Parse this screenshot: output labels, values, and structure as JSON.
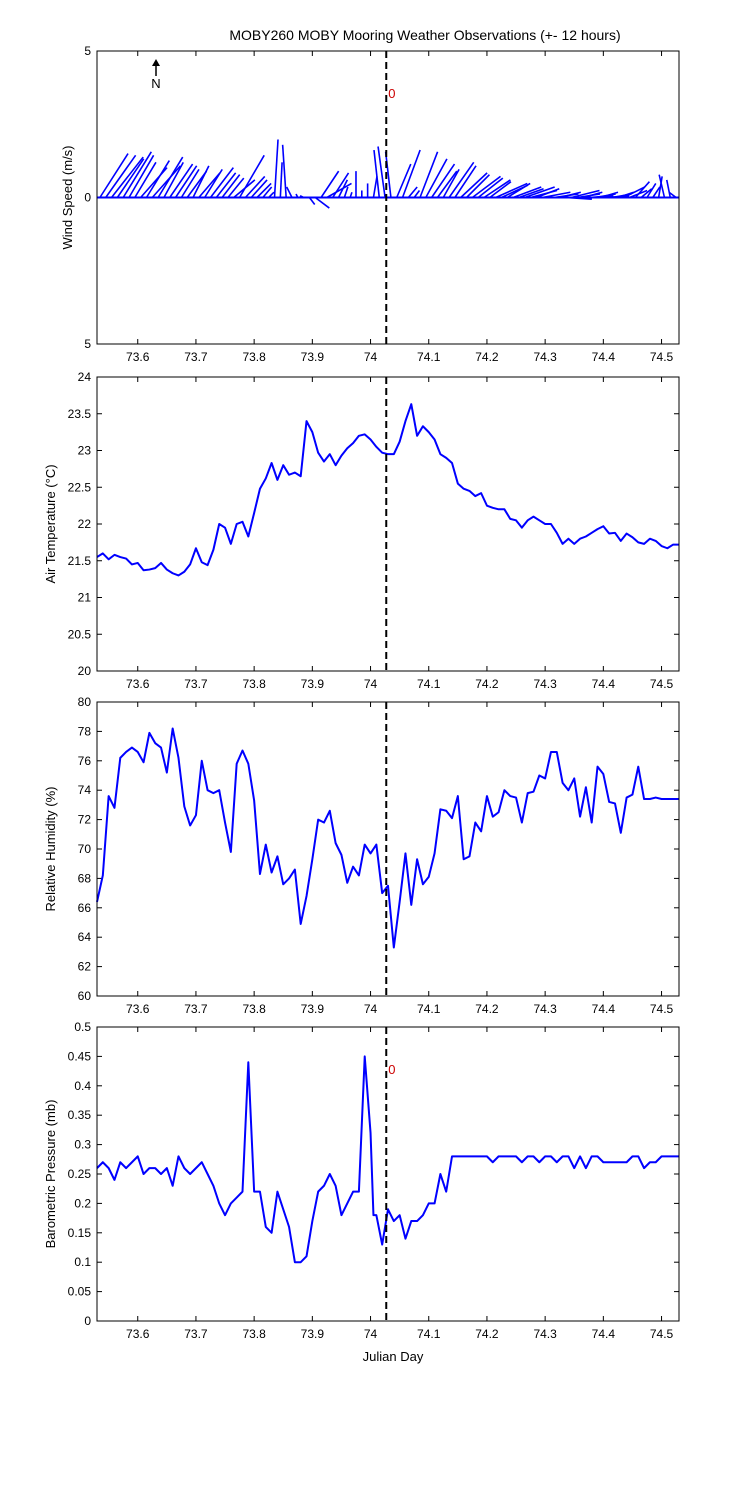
{
  "figure": {
    "title": "MOBY260 MOBY Mooring Weather Observations (+- 12 hours)",
    "xlabel": "Julian Day",
    "event_label": "0",
    "north_label": "N"
  },
  "chart_data": [
    {
      "id": "wind",
      "type": "vector",
      "ylabel": "Wind Speed (m/s)",
      "xlim": [
        73.53,
        74.53
      ],
      "ylim": [
        -5,
        5
      ],
      "ytick_labels": [
        "5",
        "0",
        "5"
      ],
      "xticks": [
        "73.6",
        "73.7",
        "73.8",
        "73.9",
        "74",
        "74.1",
        "74.2",
        "74.3",
        "74.4",
        "74.5"
      ],
      "event_x": 74.027,
      "series_color": "#0000ff",
      "x": [
        73.535,
        73.545,
        73.555,
        73.565,
        73.575,
        73.585,
        73.595,
        73.605,
        73.615,
        73.625,
        73.635,
        73.645,
        73.655,
        73.665,
        73.675,
        73.685,
        73.695,
        73.705,
        73.715,
        73.725,
        73.735,
        73.745,
        73.755,
        73.765,
        73.775,
        73.785,
        73.795,
        73.805,
        73.815,
        73.825,
        73.835,
        73.845,
        73.855,
        73.865,
        73.875,
        73.885,
        73.895,
        73.905,
        73.915,
        73.925,
        73.935,
        73.945,
        73.955,
        73.965,
        73.975,
        73.985,
        73.995,
        74.005,
        74.015,
        74.025,
        74.035,
        74.045,
        74.055,
        74.065,
        74.075,
        74.085,
        74.095,
        74.105,
        74.115,
        74.125,
        74.135,
        74.145,
        74.155,
        74.165,
        74.175,
        74.185,
        74.195,
        74.205,
        74.215,
        74.225,
        74.235,
        74.245,
        74.255,
        74.265,
        74.275,
        74.285,
        74.295,
        74.305,
        74.315,
        74.325,
        74.335,
        74.345,
        74.355,
        74.365,
        74.375,
        74.385,
        74.395,
        74.405,
        74.415,
        74.425,
        74.435,
        74.445,
        74.455,
        74.465,
        74.475,
        74.485,
        74.495,
        74.505,
        74.515,
        74.525
      ],
      "u": [
        1.6,
        1.7,
        1.8,
        1.5,
        1.6,
        1.4,
        1.2,
        1.5,
        1.3,
        1.6,
        1.4,
        1.1,
        1.3,
        1.2,
        1.0,
        1.1,
        0.9,
        1.2,
        1.0,
        1.3,
        1.1,
        1.0,
        0.9,
        1.2,
        1.4,
        1.1,
        0.9,
        0.8,
        0.5,
        0.3,
        0.2,
        0.1,
        -0.2,
        -0.3,
        -0.1,
        -0.2,
        0.3,
        0.8,
        1.0,
        1.4,
        0.9,
        0.5,
        0.2,
        0.1,
        0.0,
        0.0,
        0.0,
        0.2,
        -0.3,
        -0.4,
        -0.3,
        0.8,
        1.0,
        0.5,
        0.3,
        1.0,
        1.2,
        1.3,
        1.1,
        0.9,
        1.4,
        1.2,
        1.5,
        1.3,
        1.6,
        1.4,
        1.5,
        1.2,
        1.8,
        1.5,
        1.3,
        1.6,
        1.4,
        1.7,
        1.5,
        1.3,
        1.6,
        1.8,
        1.4,
        1.2,
        1.5,
        1.6,
        1.3,
        1.1,
        1.4,
        1.2,
        1.0,
        1.3,
        1.1,
        0.9,
        1.2,
        1.0,
        0.8,
        0.6,
        0.5,
        0.4,
        0.2,
        -0.3,
        -0.2,
        -0.4
      ],
      "v": [
        2.5,
        2.4,
        2.3,
        2.2,
        2.6,
        2.4,
        2.0,
        1.7,
        2.1,
        1.8,
        2.3,
        2.0,
        1.9,
        1.8,
        1.6,
        1.5,
        1.8,
        1.4,
        1.6,
        1.7,
        1.4,
        1.3,
        1.1,
        1.0,
        2.4,
        1.2,
        1.0,
        0.8,
        0.6,
        0.3,
        3.3,
        2.0,
        3.0,
        0.6,
        0.2,
        0.1,
        -0.4,
        -0.6,
        1.5,
        0.8,
        1.4,
        1.0,
        0.6,
        0.3,
        1.5,
        0.4,
        0.8,
        1.2,
        2.7,
        2.9,
        2.6,
        1.9,
        2.7,
        0.6,
        0.4,
        2.6,
        2.2,
        1.9,
        1.5,
        1.6,
        2.0,
        1.8,
        1.4,
        1.3,
        1.2,
        1.1,
        1.0,
        0.9,
        0.8,
        0.7,
        0.8,
        0.6,
        0.5,
        0.6,
        0.4,
        0.5,
        0.3,
        0.0,
        0.2,
        0.3,
        -0.1,
        0.4,
        0.2,
        0.3,
        0.1,
        0.2,
        0.3,
        0.1,
        0.2,
        0.3,
        0.6,
        0.4,
        0.9,
        0.5,
        0.8,
        0.6,
        1.2,
        1.3,
        1.0,
        0.3
      ]
    },
    {
      "id": "airtemp",
      "type": "line",
      "ylabel": "Air Temperature (°C)",
      "xlim": [
        73.53,
        74.53
      ],
      "ylim": [
        20,
        24
      ],
      "yticks": [
        "20",
        "20.5",
        "21",
        "21.5",
        "22",
        "22.5",
        "23",
        "23.5",
        "24"
      ],
      "xticks": [
        "73.6",
        "73.7",
        "73.8",
        "73.9",
        "74",
        "74.1",
        "74.2",
        "74.3",
        "74.4",
        "74.5"
      ],
      "event_x": 74.027,
      "series_color": "#0000ff",
      "x": [
        73.53,
        73.54,
        73.55,
        73.56,
        73.57,
        73.58,
        73.59,
        73.6,
        73.61,
        73.62,
        73.63,
        73.64,
        73.65,
        73.66,
        73.67,
        73.68,
        73.69,
        73.7,
        73.71,
        73.72,
        73.73,
        73.74,
        73.75,
        73.76,
        73.77,
        73.78,
        73.79,
        73.8,
        73.81,
        73.82,
        73.83,
        73.84,
        73.85,
        73.86,
        73.87,
        73.88,
        73.89,
        73.9,
        73.91,
        73.92,
        73.93,
        73.94,
        73.95,
        73.96,
        73.97,
        73.98,
        73.99,
        74.0,
        74.01,
        74.02,
        74.03,
        74.04,
        74.05,
        74.06,
        74.07,
        74.08,
        74.09,
        74.1,
        74.11,
        74.12,
        74.13,
        74.14,
        74.15,
        74.16,
        74.17,
        74.18,
        74.19,
        74.2,
        74.21,
        74.22,
        74.23,
        74.24,
        74.25,
        74.26,
        74.27,
        74.28,
        74.29,
        74.3,
        74.31,
        74.32,
        74.33,
        74.34,
        74.35,
        74.36,
        74.37,
        74.38,
        74.39,
        74.4,
        74.41,
        74.42,
        74.43,
        74.44,
        74.45,
        74.46,
        74.47,
        74.48,
        74.49,
        74.5,
        74.51,
        74.52,
        74.53
      ],
      "y": [
        21.55,
        21.6,
        21.52,
        21.58,
        21.55,
        21.53,
        21.45,
        21.47,
        21.37,
        21.38,
        21.4,
        21.47,
        21.38,
        21.33,
        21.3,
        21.35,
        21.45,
        21.67,
        21.48,
        21.44,
        21.65,
        22.0,
        21.95,
        21.73,
        22.0,
        22.03,
        21.83,
        22.15,
        22.48,
        22.62,
        22.83,
        22.6,
        22.8,
        22.67,
        22.7,
        22.65,
        23.4,
        23.25,
        22.97,
        22.85,
        22.95,
        22.8,
        22.93,
        23.03,
        23.1,
        23.2,
        23.22,
        23.15,
        23.05,
        22.97,
        22.95,
        22.95,
        23.12,
        23.4,
        23.63,
        23.2,
        23.33,
        23.25,
        23.15,
        22.95,
        22.9,
        22.83,
        22.55,
        22.48,
        22.45,
        22.38,
        22.42,
        22.25,
        22.22,
        22.2,
        22.2,
        22.07,
        22.05,
        21.95,
        22.05,
        22.1,
        22.05,
        22.0,
        22.0,
        21.88,
        21.73,
        21.8,
        21.73,
        21.8,
        21.83,
        21.88,
        21.93,
        21.97,
        21.87,
        21.88,
        21.77,
        21.87,
        21.82,
        21.75,
        21.73,
        21.8,
        21.77,
        21.7,
        21.67,
        21.72,
        21.72
      ]
    },
    {
      "id": "humidity",
      "type": "line",
      "ylabel": "Relative Humidity (%)",
      "xlim": [
        73.53,
        74.53
      ],
      "ylim": [
        60,
        80
      ],
      "yticks": [
        "60",
        "62",
        "64",
        "66",
        "68",
        "70",
        "72",
        "74",
        "76",
        "78",
        "80"
      ],
      "xticks": [
        "73.6",
        "73.7",
        "73.8",
        "73.9",
        "74",
        "74.1",
        "74.2",
        "74.3",
        "74.4",
        "74.5"
      ],
      "event_x": 74.027,
      "series_color": "#0000ff",
      "x": [
        73.53,
        73.54,
        73.55,
        73.56,
        73.57,
        73.58,
        73.59,
        73.6,
        73.61,
        73.62,
        73.63,
        73.64,
        73.65,
        73.66,
        73.67,
        73.68,
        73.69,
        73.7,
        73.71,
        73.72,
        73.73,
        73.74,
        73.75,
        73.76,
        73.77,
        73.78,
        73.79,
        73.8,
        73.81,
        73.82,
        73.83,
        73.84,
        73.85,
        73.86,
        73.87,
        73.88,
        73.89,
        73.9,
        73.91,
        73.92,
        73.93,
        73.94,
        73.95,
        73.96,
        73.97,
        73.98,
        73.99,
        74.0,
        74.01,
        74.02,
        74.03,
        74.04,
        74.05,
        74.06,
        74.07,
        74.08,
        74.09,
        74.1,
        74.11,
        74.12,
        74.13,
        74.14,
        74.15,
        74.16,
        74.17,
        74.18,
        74.19,
        74.2,
        74.21,
        74.22,
        74.23,
        74.24,
        74.25,
        74.26,
        74.27,
        74.28,
        74.29,
        74.3,
        74.31,
        74.32,
        74.33,
        74.34,
        74.35,
        74.36,
        74.37,
        74.38,
        74.39,
        74.4,
        74.41,
        74.42,
        74.43,
        74.44,
        74.45,
        74.46,
        74.47,
        74.48,
        74.49,
        74.5,
        74.51,
        74.52,
        74.53
      ],
      "y": [
        66.4,
        68.2,
        73.6,
        72.8,
        76.2,
        76.6,
        76.9,
        76.6,
        75.9,
        77.9,
        77.2,
        76.9,
        75.2,
        78.2,
        76.2,
        72.9,
        71.6,
        72.3,
        76.0,
        74.0,
        73.8,
        74.0,
        71.8,
        69.8,
        75.8,
        76.7,
        75.8,
        73.3,
        68.3,
        70.3,
        68.4,
        69.5,
        67.6,
        68.0,
        68.6,
        64.9,
        66.8,
        69.3,
        72.0,
        71.8,
        72.6,
        70.4,
        69.6,
        67.7,
        68.8,
        68.2,
        70.3,
        69.7,
        70.3,
        67.0,
        67.5,
        63.3,
        66.4,
        69.7,
        66.2,
        69.3,
        67.6,
        68.1,
        69.7,
        72.7,
        72.6,
        72.1,
        73.6,
        69.3,
        69.5,
        71.8,
        71.2,
        73.6,
        72.2,
        72.5,
        74.0,
        73.6,
        73.5,
        71.8,
        73.8,
        73.9,
        75.0,
        74.8,
        76.6,
        76.6,
        74.5,
        74.0,
        74.8,
        72.2,
        74.2,
        71.8,
        75.6,
        75.1,
        73.2,
        73.1,
        71.1,
        73.5,
        73.7,
        75.6,
        73.4,
        73.4,
        73.5,
        73.4,
        73.4,
        73.4,
        73.4
      ]
    },
    {
      "id": "pressure",
      "type": "line",
      "ylabel": "Barometric Pressure (mb)",
      "xlim": [
        73.53,
        74.53
      ],
      "ylim": [
        0,
        0.5
      ],
      "yticks": [
        "0",
        "0.05",
        "0.1",
        "0.15",
        "0.2",
        "0.25",
        "0.3",
        "0.35",
        "0.4",
        "0.45",
        "0.5"
      ],
      "xticks": [
        "73.6",
        "73.7",
        "73.8",
        "73.9",
        "74",
        "74.1",
        "74.2",
        "74.3",
        "74.4",
        "74.5"
      ],
      "event_x": 74.027,
      "series_color": "#0000ff",
      "x": [
        73.53,
        73.54,
        73.55,
        73.56,
        73.57,
        73.58,
        73.59,
        73.6,
        73.61,
        73.62,
        73.63,
        73.64,
        73.65,
        73.66,
        73.67,
        73.68,
        73.69,
        73.7,
        73.71,
        73.72,
        73.73,
        73.74,
        73.75,
        73.76,
        73.77,
        73.78,
        73.79,
        73.8,
        73.805,
        73.81,
        73.82,
        73.83,
        73.84,
        73.85,
        73.86,
        73.87,
        73.88,
        73.89,
        73.9,
        73.91,
        73.92,
        73.93,
        73.94,
        73.95,
        73.96,
        73.97,
        73.98,
        73.99,
        74.0,
        74.005,
        74.01,
        74.02,
        74.03,
        74.04,
        74.05,
        74.06,
        74.07,
        74.08,
        74.09,
        74.1,
        74.11,
        74.12,
        74.13,
        74.14,
        74.15,
        74.16,
        74.17,
        74.18,
        74.19,
        74.2,
        74.21,
        74.22,
        74.23,
        74.24,
        74.25,
        74.26,
        74.27,
        74.28,
        74.29,
        74.3,
        74.31,
        74.32,
        74.33,
        74.34,
        74.35,
        74.36,
        74.37,
        74.38,
        74.39,
        74.4,
        74.41,
        74.42,
        74.43,
        74.44,
        74.45,
        74.46,
        74.47,
        74.48,
        74.49,
        74.5,
        74.51,
        74.52,
        74.53
      ],
      "y": [
        0.26,
        0.27,
        0.26,
        0.24,
        0.27,
        0.26,
        0.27,
        0.28,
        0.25,
        0.26,
        0.26,
        0.25,
        0.26,
        0.23,
        0.28,
        0.26,
        0.25,
        0.26,
        0.27,
        0.25,
        0.23,
        0.2,
        0.18,
        0.2,
        0.21,
        0.22,
        0.44,
        0.22,
        0.22,
        0.22,
        0.16,
        0.15,
        0.22,
        0.19,
        0.16,
        0.1,
        0.1,
        0.11,
        0.17,
        0.22,
        0.23,
        0.25,
        0.23,
        0.18,
        0.2,
        0.22,
        0.22,
        0.45,
        0.32,
        0.18,
        0.18,
        0.13,
        0.19,
        0.17,
        0.18,
        0.14,
        0.17,
        0.17,
        0.18,
        0.2,
        0.2,
        0.25,
        0.22,
        0.28,
        0.28,
        0.28,
        0.28,
        0.28,
        0.28,
        0.28,
        0.27,
        0.28,
        0.28,
        0.28,
        0.28,
        0.27,
        0.28,
        0.28,
        0.27,
        0.28,
        0.28,
        0.27,
        0.28,
        0.28,
        0.26,
        0.28,
        0.26,
        0.28,
        0.28,
        0.27,
        0.27,
        0.27,
        0.27,
        0.27,
        0.28,
        0.28,
        0.26,
        0.27,
        0.27,
        0.28,
        0.28,
        0.28,
        0.28
      ]
    }
  ]
}
